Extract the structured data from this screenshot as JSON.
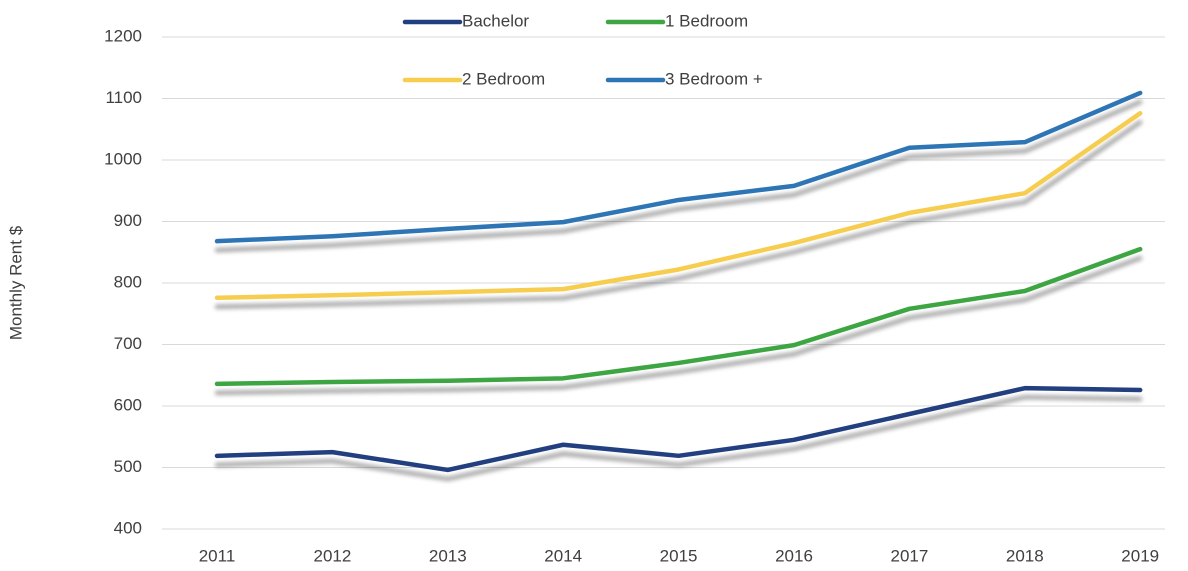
{
  "chart_data": {
    "type": "line",
    "y_label": "Monthly Rent $",
    "categories": [
      "2011",
      "2012",
      "2013",
      "2014",
      "2015",
      "2016",
      "2017",
      "2018",
      "2019"
    ],
    "series": [
      {
        "name": "Bachelor",
        "color": "#203f80",
        "values": [
          519,
          525,
          496,
          537,
          519,
          545,
          587,
          629,
          626
        ]
      },
      {
        "name": "1 Bedroom",
        "color": "#3da543",
        "values": [
          636,
          639,
          641,
          645,
          670,
          699,
          758,
          787,
          855
        ]
      },
      {
        "name": "2 Bedroom",
        "color": "#f7cd4f",
        "values": [
          776,
          780,
          785,
          790,
          822,
          865,
          914,
          946,
          1076
        ]
      },
      {
        "name": "3 Bedroom +",
        "color": "#2e75b6",
        "values": [
          868,
          876,
          888,
          899,
          935,
          958,
          1020,
          1029,
          1109
        ]
      }
    ],
    "ylim": [
      400,
      1200
    ],
    "yticks": [
      400,
      500,
      600,
      700,
      800,
      900,
      1000,
      1100,
      1200
    ],
    "grid": true
  }
}
